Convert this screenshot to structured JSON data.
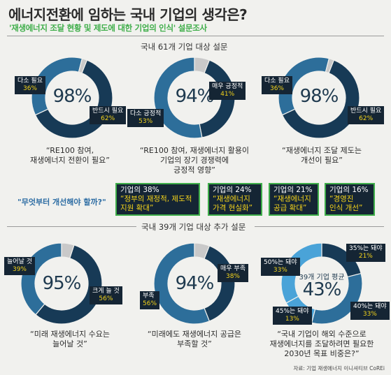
{
  "title": "에너지전환에 임하는 국내 기업의 생각은?",
  "subtitle": "'재생에너지 조달 현황 및 제도에 대한 기업의 인식' 설문조사",
  "survey_61": "국내 61개 기업 대상 설문",
  "survey_39": "국내 39개 기업 대상 추가 설문",
  "question_tag": "\"무엇부터 개선해야 할까?\"",
  "source": "자료: 기업 재생에너지 이니셔티브 CoREi",
  "colors": {
    "dark": "#173a56",
    "mid": "#2d6e9a",
    "light": "#4aa3d8",
    "grey": "#c9c9c9",
    "accent": "#3fae4a",
    "highlight": "#f2d21b"
  },
  "chart_data": [
    {
      "type": "pie",
      "id": "c1",
      "center": "98%",
      "slices": [
        {
          "label": "반드시 필요",
          "pct_text": "62%",
          "value": 62,
          "color": "#173a56"
        },
        {
          "label": "다소 필요",
          "pct_text": "36%",
          "value": 36,
          "color": "#2d6e9a"
        },
        {
          "label": "",
          "pct_text": "",
          "value": 2,
          "color": "#c9c9c9"
        }
      ],
      "caption": [
        "“RE100 참여,",
        "재생에너지 전환이 필요”"
      ]
    },
    {
      "type": "pie",
      "id": "c2",
      "center": "94%",
      "slices": [
        {
          "label": "매우 긍정적",
          "pct_text": "41%",
          "value": 41,
          "color": "#173a56"
        },
        {
          "label": "다소 긍정적",
          "pct_text": "53%",
          "value": 53,
          "color": "#2d6e9a"
        },
        {
          "label": "",
          "pct_text": "",
          "value": 6,
          "color": "#c9c9c9"
        }
      ],
      "caption": [
        "“RE100 참여, 재생에너지 활용이",
        "기업의 장기 경쟁력에",
        "긍정적 영향”"
      ]
    },
    {
      "type": "pie",
      "id": "c3",
      "center": "98%",
      "slices": [
        {
          "label": "반드시 필요",
          "pct_text": "62%",
          "value": 62,
          "color": "#173a56"
        },
        {
          "label": "다소 필요",
          "pct_text": "36%",
          "value": 36,
          "color": "#2d6e9a"
        },
        {
          "label": "",
          "pct_text": "",
          "value": 2,
          "color": "#c9c9c9"
        }
      ],
      "caption": [
        "“재생에너지 조달 제도는",
        "개선이 필요”"
      ]
    },
    {
      "type": "pie",
      "id": "c4",
      "center": "95%",
      "slices": [
        {
          "label": "크게 늘 것",
          "pct_text": "56%",
          "value": 56,
          "color": "#173a56"
        },
        {
          "label": "늘어날 것",
          "pct_text": "39%",
          "value": 39,
          "color": "#2d6e9a"
        },
        {
          "label": "",
          "pct_text": "",
          "value": 5,
          "color": "#c9c9c9"
        }
      ],
      "caption": [
        "“미래 재생에너지 수요는",
        "늘어날 것”"
      ]
    },
    {
      "type": "pie",
      "id": "c5",
      "center": "94%",
      "slices": [
        {
          "label": "매우 부족",
          "pct_text": "38%",
          "value": 38,
          "color": "#173a56"
        },
        {
          "label": "부족",
          "pct_text": "56%",
          "value": 56,
          "color": "#2d6e9a"
        },
        {
          "label": "",
          "pct_text": "",
          "value": 6,
          "color": "#c9c9c9"
        }
      ],
      "caption": [
        "“미래에도 재생에너지 공급은",
        "부족할 것”"
      ]
    },
    {
      "type": "pie",
      "id": "c6",
      "center": "43%",
      "center_top": "39개 기업 평균",
      "slices": [
        {
          "label": "35%는 돼야",
          "pct_text": "21%",
          "value": 21,
          "color": "#173a56"
        },
        {
          "label": "40%는 돼야",
          "pct_text": "33%",
          "value": 33,
          "color": "#2d6e9a"
        },
        {
          "label": "45%는 돼야",
          "pct_text": "13%",
          "value": 13,
          "color": "#4aa3d8"
        },
        {
          "label": "50%는 돼야",
          "pct_text": "33%",
          "value": 33,
          "color": "#4aa3d8"
        }
      ],
      "caption": [
        "“국내 기업이 해외 수준으로",
        "재생에너지를 조달하려면 필요한",
        "2030년 목표 비중은?”"
      ]
    }
  ],
  "improvements": [
    {
      "head": "기업의 38%",
      "lines": [
        "“정부의 재정적, 제도적",
        "지원 확대”"
      ]
    },
    {
      "head": "기업의 24%",
      "lines": [
        "“재생에너지",
        "가격 현실화”"
      ]
    },
    {
      "head": "기업의 21%",
      "lines": [
        "“재생에너지",
        "공급 확대”"
      ]
    },
    {
      "head": "기업의 16%",
      "lines": [
        "“경영진",
        "인식 개선”"
      ]
    }
  ]
}
